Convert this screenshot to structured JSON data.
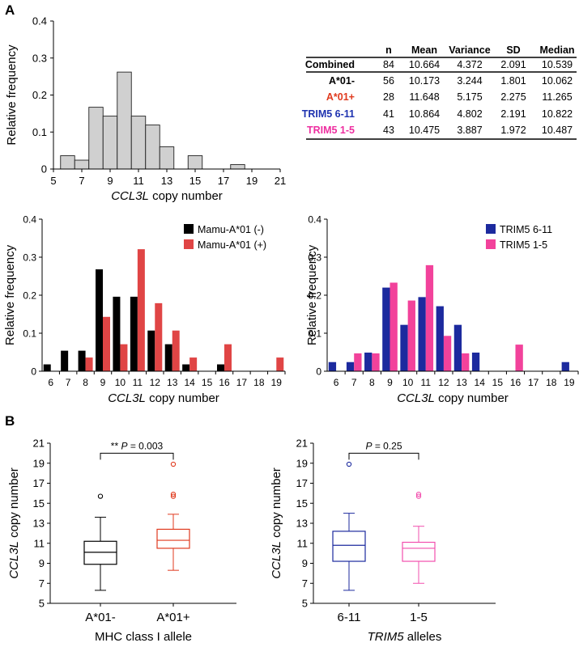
{
  "panel_labels": {
    "a": "A",
    "b": "B"
  },
  "stats_table": {
    "headers": [
      "n",
      "Mean",
      "Variance",
      "SD",
      "Median"
    ],
    "rows": [
      {
        "label": "Combined",
        "color": "#000000",
        "cells": [
          "84",
          "10.664",
          "4.372",
          "2.091",
          "10.539"
        ]
      },
      {
        "label": "A*01-",
        "color": "#000000",
        "cells": [
          "56",
          "10.173",
          "3.244",
          "1.801",
          "10.062"
        ]
      },
      {
        "label": "A*01+",
        "color": "#e03a1e",
        "cells": [
          "28",
          "11.648",
          "5.175",
          "2.275",
          "11.265"
        ]
      },
      {
        "label": "TRIM5 6-11",
        "color": "#1f33b0",
        "cells": [
          "41",
          "10.864",
          "4.802",
          "2.191",
          "10.822"
        ]
      },
      {
        "label": "TRIM5 1-5",
        "color": "#ee2fa0",
        "cells": [
          "43",
          "10.475",
          "3.887",
          "1.972",
          "10.487"
        ]
      }
    ]
  },
  "chart_data": [
    {
      "type": "bar",
      "subtype": "histogram",
      "ylabel": "Relative frequency",
      "xlabel_italic": "CCL3L",
      "xlabel_rest": " copy number",
      "xlim": [
        5,
        21
      ],
      "ylim": [
        0,
        0.4
      ],
      "xticks": [
        5,
        7,
        9,
        11,
        13,
        15,
        17,
        19,
        21
      ],
      "yticks": [
        "0",
        "0.1",
        "0.2",
        "0.3",
        "0.4"
      ],
      "bin_width": 1,
      "bins": [
        {
          "x": 6,
          "value": 0.036
        },
        {
          "x": 7,
          "value": 0.024
        },
        {
          "x": 8,
          "value": 0.167
        },
        {
          "x": 9,
          "value": 0.143
        },
        {
          "x": 10,
          "value": 0.262
        },
        {
          "x": 11,
          "value": 0.143
        },
        {
          "x": 12,
          "value": 0.119
        },
        {
          "x": 13,
          "value": 0.06
        },
        {
          "x": 15,
          "value": 0.036
        },
        {
          "x": 18,
          "value": 0.012
        }
      ],
      "fill": "#d0d0d0"
    },
    {
      "type": "bar",
      "ylabel": "Relative frequency",
      "xlabel_italic": "CCL3L",
      "xlabel_rest": " copy number",
      "ylim": [
        0,
        0.4
      ],
      "yticks": [
        "0",
        "0.1",
        "0.2",
        "0.3",
        "0.4"
      ],
      "categories": [
        "6",
        "7",
        "8",
        "9",
        "10",
        "11",
        "12",
        "13",
        "14",
        "15",
        "16",
        "17",
        "18",
        "19"
      ],
      "legend_position": "top-right",
      "series": [
        {
          "name": "Mamu-A*01 (-)",
          "color": "#000000",
          "values": [
            0.018,
            0.054,
            0.054,
            0.268,
            0.196,
            0.196,
            0.107,
            0.071,
            0.018,
            0,
            0.018,
            0,
            0,
            0
          ]
        },
        {
          "name": "Mamu-A*01 (+)",
          "color": "#e04545",
          "values": [
            0,
            0,
            0.036,
            0.143,
            0.071,
            0.321,
            0.179,
            0.107,
            0.036,
            0,
            0.071,
            0,
            0,
            0.036
          ]
        }
      ]
    },
    {
      "type": "bar",
      "ylabel": "Relative frequency",
      "xlabel_italic": "CCL3L",
      "xlabel_rest": " copy number",
      "ylim": [
        0,
        0.4
      ],
      "yticks": [
        "0",
        "0.1",
        "0.2",
        "0.3",
        "0.4"
      ],
      "categories": [
        "6",
        "7",
        "8",
        "9",
        "10",
        "11",
        "12",
        "13",
        "14",
        "15",
        "16",
        "17",
        "18",
        "19"
      ],
      "legend_position": "top-right",
      "series": [
        {
          "name": "TRIM5 6-11",
          "color": "#1c2a9e",
          "values": [
            0.024,
            0.024,
            0.049,
            0.22,
            0.122,
            0.195,
            0.171,
            0.122,
            0.049,
            0,
            0,
            0,
            0,
            0.024
          ]
        },
        {
          "name": "TRIM5 1-5",
          "color": "#f2429b",
          "values": [
            0,
            0.047,
            0.047,
            0.233,
            0.186,
            0.279,
            0.093,
            0.047,
            0,
            0,
            0.07,
            0,
            0,
            0
          ]
        }
      ]
    },
    {
      "type": "box",
      "ylabel_italic": "CCL3L",
      "ylabel_rest": " copy number",
      "xlabel": "MHC class I allele",
      "xlabel_italic": "",
      "xlabel_rest": "",
      "ylim": [
        5,
        21
      ],
      "yticks": [
        5,
        7,
        9,
        11,
        13,
        15,
        17,
        19,
        21
      ],
      "significance": {
        "stars": "** ",
        "p_italic": "P",
        "p_rest": " = 0.003"
      },
      "groups": [
        {
          "label": "A*01-",
          "color": "#000000",
          "q1": 8.9,
          "median": 10.1,
          "q3": 11.2,
          "whisker_low": 6.3,
          "whisker_high": 13.6,
          "outliers": [
            15.7
          ]
        },
        {
          "label": "A*01+",
          "color": "#e03a1e",
          "q1": 10.5,
          "median": 11.3,
          "q3": 12.4,
          "whisker_low": 8.3,
          "whisker_high": 13.9,
          "outliers": [
            15.7,
            15.9,
            18.9
          ]
        }
      ]
    },
    {
      "type": "box",
      "ylabel_italic": "CCL3L",
      "ylabel_rest": " copy number",
      "xlabel": "",
      "xlabel_italic": "TRIM5",
      "xlabel_rest": " alleles",
      "ylim": [
        5,
        21
      ],
      "yticks": [
        5,
        7,
        9,
        11,
        13,
        15,
        17,
        19,
        21
      ],
      "significance": {
        "stars": "",
        "p_italic": "P",
        "p_rest": " = 0.25"
      },
      "groups": [
        {
          "label": "6-11",
          "color": "#1c2a9e",
          "q1": 9.2,
          "median": 10.8,
          "q3": 12.2,
          "whisker_low": 6.3,
          "whisker_high": 14.0,
          "outliers": [
            18.9
          ]
        },
        {
          "label": "1-5",
          "color": "#f24fae",
          "q1": 9.2,
          "median": 10.5,
          "q3": 11.1,
          "whisker_low": 7.0,
          "whisker_high": 12.7,
          "outliers": [
            15.7,
            15.9
          ]
        }
      ]
    }
  ]
}
